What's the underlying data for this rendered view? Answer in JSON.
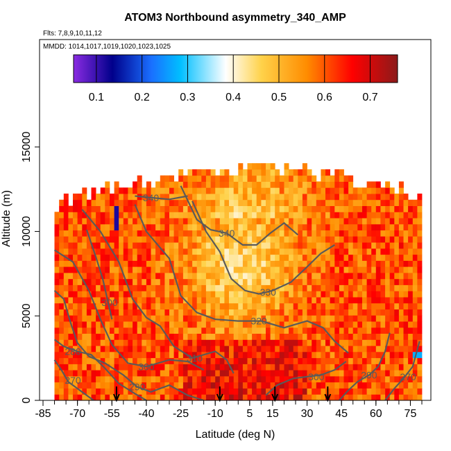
{
  "chart_data": {
    "type": "heatmap",
    "title": "ATOM3 Northbound asymmetry_340_AMP",
    "subtitle_flights": "Flts: 7,8,9,10,11,12",
    "subtitle_dates": "MMDD: 1014,1017,1019,1020,1023,1025",
    "xlabel": "Latitude (deg N)",
    "ylabel": "Altitude (m)",
    "xlim": [
      -85,
      80
    ],
    "ylim": [
      0,
      17500
    ],
    "x_ticks": [
      -85,
      -70,
      -55,
      -40,
      -25,
      -10,
      5,
      15,
      30,
      45,
      60,
      75
    ],
    "y_ticks": [
      0,
      5000,
      10000,
      15000
    ],
    "colorbar": {
      "range": [
        0.05,
        0.76
      ],
      "ticks": [
        0.1,
        0.2,
        0.3,
        0.4,
        0.5,
        0.6,
        0.7
      ],
      "tick_labels": [
        "0.1",
        "0.2",
        "0.3",
        "0.4",
        "0.5",
        "0.6",
        "0.7"
      ],
      "colors": [
        "#8a2be2",
        "#00008b",
        "#1a6fff",
        "#00bfff",
        "#ffffff",
        "#ffd24a",
        "#ff8c00",
        "#ff0000",
        "#8b1a1a"
      ]
    },
    "profile_markers_latitude": [
      -53,
      -8,
      16,
      39
    ],
    "contours": [
      {
        "label": "270",
        "label_at": [
          -72,
          1200
        ],
        "points": [
          [
            -80,
            2400
          ],
          [
            -77,
            1800
          ],
          [
            -74,
            1100
          ],
          [
            -70,
            700
          ],
          [
            -66,
            300
          ],
          [
            -63,
            0
          ]
        ]
      },
      {
        "label": "280",
        "label_at": [
          -72,
          2900
        ],
        "points": [
          [
            -80,
            3600
          ],
          [
            -76,
            3200
          ],
          [
            -70,
            2900
          ],
          [
            -64,
            2700
          ],
          [
            -58,
            1900
          ],
          [
            -52,
            1000
          ],
          [
            -45,
            400
          ],
          [
            -40,
            0
          ]
        ]
      },
      {
        "label": "290",
        "label_at": [
          -44,
          800
        ],
        "points": [
          [
            -80,
            6500
          ],
          [
            -76,
            6000
          ],
          [
            -73,
            4600
          ],
          [
            -70,
            3400
          ],
          [
            -65,
            2600
          ],
          [
            -58,
            2200
          ],
          [
            -50,
            1500
          ],
          [
            -44,
            800
          ],
          [
            -38,
            500
          ],
          [
            -30,
            900
          ],
          [
            -22,
            300
          ],
          [
            -15,
            0
          ]
        ]
      },
      {
        "label": "300",
        "label_at": [
          -40,
          2000
        ],
        "points": [
          [
            -80,
            8900
          ],
          [
            -72,
            8200
          ],
          [
            -65,
            6500
          ],
          [
            -60,
            4800
          ],
          [
            -55,
            3300
          ],
          [
            -48,
            2200
          ],
          [
            -40,
            2000
          ],
          [
            -30,
            2400
          ],
          [
            -22,
            2300
          ],
          [
            -15,
            1800
          ]
        ]
      },
      {
        "label": "300",
        "label_at": [
          -56,
          5800
        ],
        "points": [
          [
            -66,
            10100
          ],
          [
            -62,
            8500
          ],
          [
            -59,
            7200
          ],
          [
            -57,
            6000
          ],
          [
            -55,
            4800
          ]
        ]
      },
      {
        "label": "310",
        "label_at": [
          -19,
          2500
        ],
        "points": [
          [
            -68,
            11300
          ],
          [
            -60,
            10000
          ],
          [
            -52,
            8200
          ],
          [
            -46,
            6000
          ],
          [
            -40,
            4900
          ],
          [
            -34,
            4400
          ],
          [
            -28,
            3200
          ],
          [
            -20,
            2500
          ],
          [
            -10,
            2900
          ],
          [
            -5,
            2400
          ],
          [
            -2,
            1600
          ]
        ]
      },
      {
        "label": "320",
        "label_at": [
          9,
          4700
        ],
        "points": [
          [
            -45,
            11600
          ],
          [
            -40,
            10000
          ],
          [
            -30,
            8400
          ],
          [
            -25,
            6200
          ],
          [
            -18,
            5200
          ],
          [
            -10,
            4800
          ],
          [
            0,
            4700
          ],
          [
            10,
            4700
          ],
          [
            20,
            4300
          ],
          [
            30,
            4700
          ],
          [
            37,
            4300
          ],
          [
            42,
            3500
          ],
          [
            48,
            2800
          ]
        ]
      },
      {
        "label": "330",
        "label_at": [
          13,
          6400
        ],
        "points": [
          [
            -20,
            11800
          ],
          [
            -14,
            10000
          ],
          [
            -8,
            8800
          ],
          [
            -3,
            7200
          ],
          [
            3,
            6500
          ],
          [
            9,
            6300
          ],
          [
            15,
            6500
          ],
          [
            23,
            7000
          ],
          [
            30,
            7900
          ],
          [
            36,
            8700
          ],
          [
            42,
            9200
          ]
        ]
      },
      {
        "label": "340",
        "label_at": [
          -38,
          12000
        ],
        "points": [
          [
            -45,
            12100
          ],
          [
            -38,
            12000
          ],
          [
            -30,
            11900
          ],
          [
            -22,
            12100
          ]
        ]
      },
      {
        "label": "340",
        "label_at": [
          -5,
          9900
        ],
        "points": [
          [
            -25,
            12700
          ],
          [
            -18,
            10700
          ],
          [
            -12,
            10100
          ],
          [
            -5,
            9900
          ],
          [
            2,
            9200
          ],
          [
            8,
            9200
          ],
          [
            14,
            9900
          ],
          [
            20,
            10500
          ],
          [
            26,
            9800
          ]
        ]
      },
      {
        "label": "300",
        "label_at": [
          34,
          1400
        ],
        "points": [
          [
            12,
            300
          ],
          [
            17,
            900
          ],
          [
            24,
            1300
          ],
          [
            30,
            1400
          ],
          [
            36,
            1500
          ],
          [
            42,
            1800
          ],
          [
            47,
            2300
          ]
        ]
      },
      {
        "label": "290",
        "label_at": [
          57,
          1500
        ],
        "points": [
          [
            44,
            0
          ],
          [
            48,
            600
          ],
          [
            52,
            1100
          ],
          [
            57,
            1500
          ],
          [
            61,
            2000
          ],
          [
            64,
            2900
          ],
          [
            66,
            4000
          ]
        ]
      },
      {
        "label": "270",
        "label_at": [
          74,
          1400
        ],
        "points": [
          [
            64,
            0
          ],
          [
            68,
            700
          ],
          [
            72,
            1300
          ],
          [
            76,
            2000
          ],
          [
            79,
            3500
          ]
        ]
      }
    ]
  }
}
